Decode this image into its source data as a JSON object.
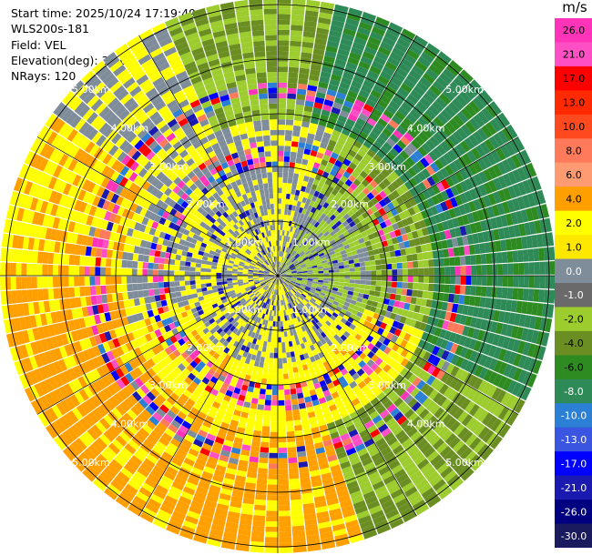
{
  "meta": {
    "start_time": "Start time: 2025/10/24 17:19:49",
    "station": "WLS200s-181",
    "field": "Field: VEL",
    "elevation": "Elevation(deg): 35.00",
    "nrays": "NRays: 120"
  },
  "chart_data": {
    "type": "ppi_radial_velocity",
    "colorbar_unit": "m/s",
    "colorbar_levels": [
      "26.0",
      "21.0",
      "17.0",
      "13.0",
      "10.0",
      "8.0",
      "6.0",
      "4.0",
      "2.0",
      "1.0",
      "0.0",
      "-1.0",
      "-2.0",
      "-4.0",
      "-6.0",
      "-8.0",
      "-10.0",
      "-13.0",
      "-17.0",
      "-21.0",
      "-26.0",
      "-30.0"
    ],
    "colorbar_colors": [
      "#ff34b8",
      "#ff4fc5",
      "#ff0000",
      "#ff2a00",
      "#ff4a1f",
      "#ff7a5a",
      "#ff9b72",
      "#ff9f00",
      "#ffff00",
      "#ffe800",
      "#7f8c99",
      "#6a6a6a",
      "#9ccc2e",
      "#6b8e23",
      "#2e8b22",
      "#2e8b57",
      "#2b7fd4",
      "#3a55e0",
      "#0000ff",
      "#1a1ab0",
      "#000080",
      "#1a1a5e"
    ],
    "range_rings_km": [
      "1.00km",
      "2.00km",
      "3.00km",
      "4.00km",
      "5.00km"
    ],
    "max_range_km": 5.5,
    "nrays": 120
  }
}
